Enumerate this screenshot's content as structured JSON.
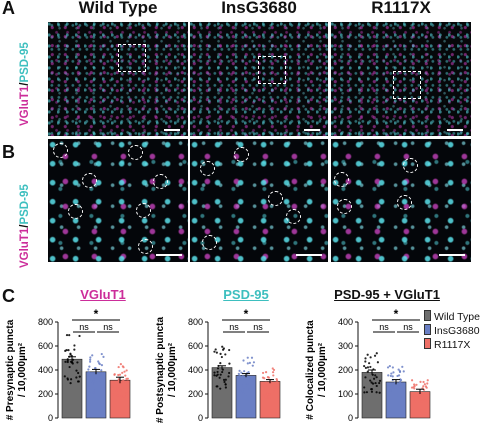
{
  "panel_labels": {
    "a": "A",
    "b": "B",
    "c": "C"
  },
  "columns": [
    "Wild Type",
    "InsG3680",
    "R1117X"
  ],
  "stain_label": {
    "vglut": "VGluT1",
    "sep": "/",
    "psd": "PSD-95"
  },
  "colors": {
    "wild_type": "#6e6e6e",
    "insg3680": "#6a7fc4",
    "r1117x": "#ee6f66",
    "vglut1": "#cc2d9a",
    "psd95": "#3dbfbf"
  },
  "chart_data": [
    {
      "type": "bar",
      "title": "VGluT1",
      "ylabel_line1": "# Presynaptic puncta",
      "ylabel_line2": "/ 10,000µm²",
      "categories": [
        "Wild Type",
        "InsG3680",
        "R1117X"
      ],
      "values": [
        490,
        385,
        315
      ],
      "errors": [
        20,
        20,
        25
      ],
      "ylim": [
        0,
        800
      ],
      "yticks": [
        "0",
        "200",
        "400",
        "600",
        "800"
      ],
      "annotations": {
        "pairwise": [
          "ns",
          "ns"
        ],
        "overall": "*"
      }
    },
    {
      "type": "bar",
      "title": "PSD-95",
      "ylabel_line1": "# Postsynaptic puncta",
      "ylabel_line2": "/ 10,000µm²",
      "categories": [
        "Wild Type",
        "InsG3680",
        "R1117X"
      ],
      "values": [
        420,
        355,
        305
      ],
      "errors": [
        15,
        15,
        15
      ],
      "ylim": [
        0,
        800
      ],
      "yticks": [
        "0",
        "200",
        "400",
        "600",
        "800"
      ],
      "annotations": {
        "pairwise": [
          "ns",
          "ns"
        ],
        "overall": "*"
      }
    },
    {
      "type": "bar",
      "title": "PSD-95 + VGluT1",
      "ylabel_line1": "# Colocalized puncta",
      "ylabel_line2": "/ 10,000µm²",
      "categories": [
        "Wild Type",
        "InsG3680",
        "R1117X"
      ],
      "values": [
        190,
        150,
        110
      ],
      "errors": [
        10,
        10,
        10
      ],
      "ylim": [
        0,
        400
      ],
      "yticks": [
        "0",
        "100",
        "200",
        "300",
        "400"
      ],
      "annotations": {
        "pairwise": [
          "ns",
          "ns"
        ],
        "overall": "*"
      }
    }
  ],
  "legend": [
    "Wild Type",
    "InsG3680",
    "R1117X"
  ]
}
